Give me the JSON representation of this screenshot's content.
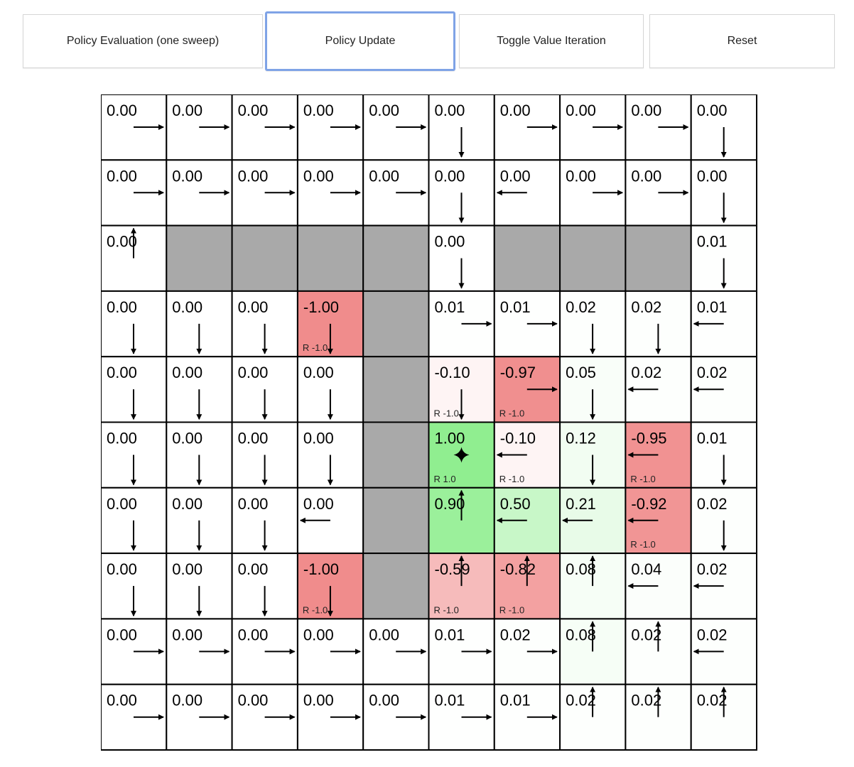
{
  "buttons": [
    {
      "label": "Policy Evaluation (one sweep)"
    },
    {
      "label": "Policy Update",
      "focused": true
    },
    {
      "label": "Toggle Value Iteration"
    },
    {
      "label": "Reset"
    }
  ],
  "colors": {
    "wall": "#a9a9a9",
    "positive": "#90ee90",
    "negative": "#f08c8c",
    "grid_line": "#000000"
  },
  "reward_prefix": "R",
  "grid": [
    [
      [
        "0.00",
        "r"
      ],
      [
        "0.00",
        "r"
      ],
      [
        "0.00",
        "r"
      ],
      [
        "0.00",
        "r"
      ],
      [
        "0.00",
        "r"
      ],
      [
        "0.00",
        "d"
      ],
      [
        "0.00",
        "r"
      ],
      [
        "0.00",
        "r"
      ],
      [
        "0.00",
        "r"
      ],
      [
        "0.00",
        "d"
      ]
    ],
    [
      [
        "0.00",
        "r"
      ],
      [
        "0.00",
        "r"
      ],
      [
        "0.00",
        "r"
      ],
      [
        "0.00",
        "r"
      ],
      [
        "0.00",
        "r"
      ],
      [
        "0.00",
        "d"
      ],
      [
        "0.00",
        "l"
      ],
      [
        "0.00",
        "r"
      ],
      [
        "0.00",
        "r"
      ],
      [
        "0.00",
        "d"
      ]
    ],
    [
      [
        "0.00",
        "u"
      ],
      [
        "W"
      ],
      [
        "W"
      ],
      [
        "W"
      ],
      [
        "W"
      ],
      [
        "0.00",
        "d"
      ],
      [
        "W"
      ],
      [
        "W"
      ],
      [
        "W"
      ],
      [
        "0.01",
        "d"
      ]
    ],
    [
      [
        "0.00",
        "d"
      ],
      [
        "0.00",
        "d"
      ],
      [
        "0.00",
        "d"
      ],
      [
        "-1.00",
        "d",
        "-1.0"
      ],
      [
        "W"
      ],
      [
        "0.01",
        "r"
      ],
      [
        "0.01",
        "r"
      ],
      [
        "0.02",
        "d"
      ],
      [
        "0.02",
        "d"
      ],
      [
        "0.01",
        "l"
      ]
    ],
    [
      [
        "0.00",
        "d"
      ],
      [
        "0.00",
        "d"
      ],
      [
        "0.00",
        "d"
      ],
      [
        "0.00",
        "d"
      ],
      [
        "W"
      ],
      [
        "-0.10",
        "d",
        "-1.0"
      ],
      [
        "-0.97",
        "r",
        "-1.0"
      ],
      [
        "0.05",
        "d"
      ],
      [
        "0.02",
        "l"
      ],
      [
        "0.02",
        "l"
      ]
    ],
    [
      [
        "0.00",
        "d"
      ],
      [
        "0.00",
        "d"
      ],
      [
        "0.00",
        "d"
      ],
      [
        "0.00",
        "d"
      ],
      [
        "W"
      ],
      [
        "1.00",
        "star",
        "1.0"
      ],
      [
        "-0.10",
        "l",
        "-1.0"
      ],
      [
        "0.12",
        "d"
      ],
      [
        "-0.95",
        "l",
        "-1.0"
      ],
      [
        "0.01",
        "d"
      ]
    ],
    [
      [
        "0.00",
        "d"
      ],
      [
        "0.00",
        "d"
      ],
      [
        "0.00",
        "d"
      ],
      [
        "0.00",
        "l"
      ],
      [
        "W"
      ],
      [
        "0.90",
        "u"
      ],
      [
        "0.50",
        "l"
      ],
      [
        "0.21",
        "l"
      ],
      [
        "-0.92",
        "l",
        "-1.0"
      ],
      [
        "0.02",
        "d"
      ]
    ],
    [
      [
        "0.00",
        "d"
      ],
      [
        "0.00",
        "d"
      ],
      [
        "0.00",
        "d"
      ],
      [
        "-1.00",
        "d",
        "-1.0"
      ],
      [
        "W"
      ],
      [
        "-0.59",
        "u",
        "-1.0"
      ],
      [
        "-0.82",
        "u",
        "-1.0"
      ],
      [
        "0.08",
        "u"
      ],
      [
        "0.04",
        "l"
      ],
      [
        "0.02",
        "l"
      ]
    ],
    [
      [
        "0.00",
        "r"
      ],
      [
        "0.00",
        "r"
      ],
      [
        "0.00",
        "r"
      ],
      [
        "0.00",
        "r"
      ],
      [
        "0.00",
        "r"
      ],
      [
        "0.01",
        "r"
      ],
      [
        "0.02",
        "r"
      ],
      [
        "0.08",
        "u"
      ],
      [
        "0.02",
        "u"
      ],
      [
        "0.02",
        "l"
      ]
    ],
    [
      [
        "0.00",
        "r"
      ],
      [
        "0.00",
        "r"
      ],
      [
        "0.00",
        "r"
      ],
      [
        "0.00",
        "r"
      ],
      [
        "0.00",
        "r"
      ],
      [
        "0.01",
        "r"
      ],
      [
        "0.01",
        "r"
      ],
      [
        "0.02",
        "u"
      ],
      [
        "0.02",
        "u"
      ],
      [
        "0.02",
        "u"
      ]
    ]
  ]
}
